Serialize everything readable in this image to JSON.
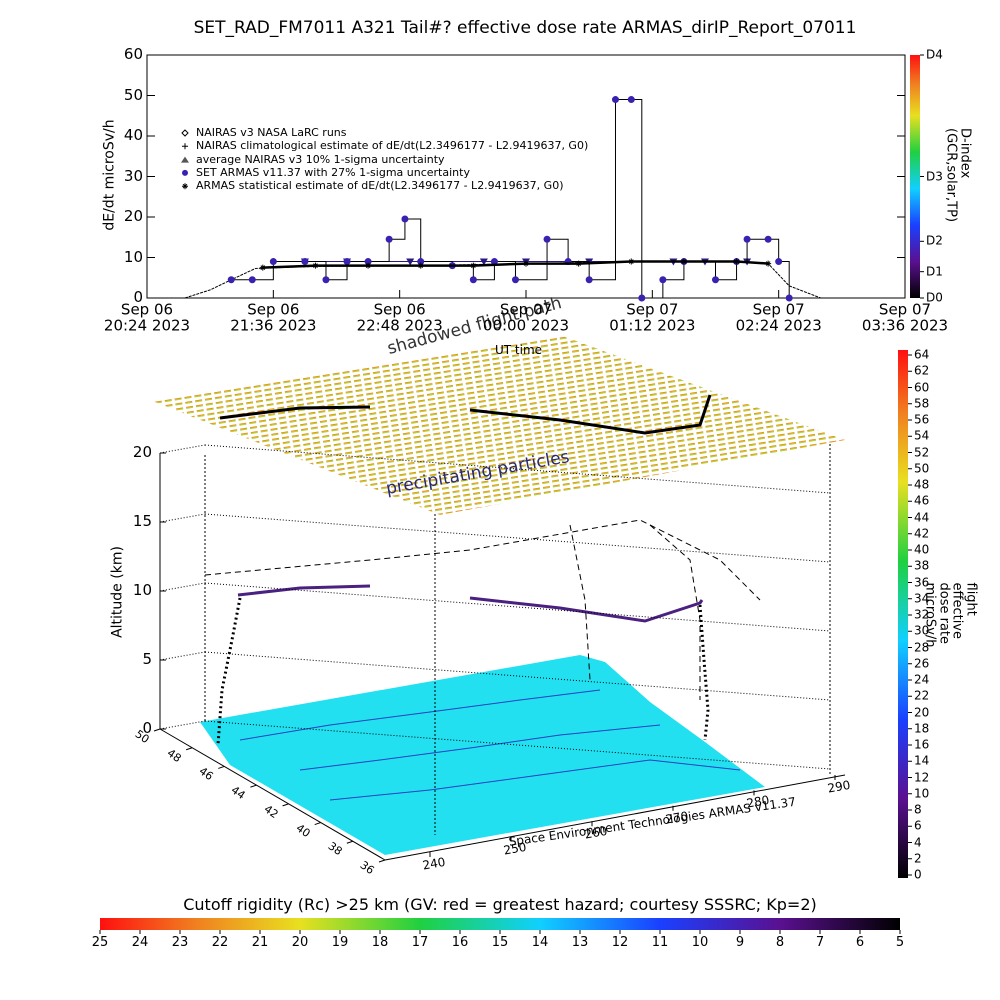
{
  "chart_data": [
    {
      "type": "line",
      "title": "SET_RAD_FM7011  A321 Tail#? effective dose rate ARMAS_dirIP_Report_07011",
      "ylabel": "dE/dt microSv/h",
      "xlabel": "UT time",
      "xlim": [
        20.4,
        27.6
      ],
      "xticks": [
        {
          "value": 20.4,
          "label": "Sep 06\n20:24 2023"
        },
        {
          "value": 21.6,
          "label": "Sep 06\n21:36 2023"
        },
        {
          "value": 22.8,
          "label": "Sep 06\n22:48 2023"
        },
        {
          "value": 24.0,
          "label": "Sep 07\n00:00 2023"
        },
        {
          "value": 25.2,
          "label": "Sep 07\n01:12 2023"
        },
        {
          "value": 26.4,
          "label": "Sep 07\n02:24 2023"
        },
        {
          "value": 27.6,
          "label": "Sep 07\n03:36 2023"
        }
      ],
      "ylim": [
        0,
        60
      ],
      "yticks": [
        0,
        10,
        20,
        30,
        40,
        50,
        60
      ],
      "series": [
        {
          "name": "NAIRAS v3 NASA LaRC runs",
          "color": "#000000",
          "marker": "diamond",
          "x": [],
          "values": []
        },
        {
          "name": "NAIRAS climatological estimate of dE/dt(L2.3496177 - L2.9419637, G0)",
          "color": "#000000",
          "marker": "line",
          "x": [
            20.76,
            21.0,
            21.2,
            21.43,
            22.0,
            23.0,
            24.0,
            25.0,
            26.0,
            26.3,
            26.5,
            26.8
          ],
          "values": [
            0,
            2,
            4.5,
            7.3,
            7.8,
            8,
            8.5,
            9,
            9,
            8.5,
            3,
            0
          ]
        },
        {
          "name": "average NAIRAS v3 10% 1-sigma uncertainty",
          "color": "#2a1a80",
          "marker": "triangle",
          "x": [
            21.9,
            22.3,
            22.9,
            23.6,
            24.0,
            24.6,
            25.4,
            25.7,
            26.1
          ],
          "values": [
            9,
            9,
            9,
            9,
            9,
            9,
            9,
            9,
            9
          ]
        },
        {
          "name": "SET ARMAS v11.37 with 27% 1-sigma uncertainty",
          "color": "#3a22b0",
          "marker": "dot",
          "x": [
            21.2,
            21.4,
            21.6,
            21.9,
            22.1,
            22.3,
            22.5,
            22.7,
            22.85,
            23.0,
            23.3,
            23.5,
            23.7,
            23.9,
            24.2,
            24.4,
            24.6,
            24.85,
            25.0,
            25.1,
            25.3,
            25.5,
            25.8,
            26.0,
            26.1,
            26.3,
            26.4,
            26.5
          ],
          "values": [
            4.5,
            4.5,
            9,
            9,
            4.5,
            9,
            9,
            14.5,
            19.5,
            9,
            8,
            4.5,
            9,
            4.5,
            14.5,
            9,
            4.5,
            49,
            49,
            0,
            4.5,
            9,
            4.5,
            9,
            14.5,
            14.5,
            9,
            0
          ]
        },
        {
          "name": "ARMAS statistical estimate of dE/dt(L2.3496177 - L2.9419637, G0)",
          "color": "#000000",
          "marker": "star",
          "x": [
            21.5,
            22.0,
            22.5,
            23.0,
            23.5,
            24.0,
            24.5,
            25.0,
            25.5,
            26.0,
            26.3
          ],
          "values": [
            7.5,
            8,
            8,
            8,
            8,
            8.5,
            8.5,
            9,
            9,
            9,
            8.5
          ]
        }
      ],
      "colorbar": {
        "label": "D-index (GCR,solar,TP)",
        "lim": [
          0,
          60
        ],
        "ticks": [
          {
            "value": 0,
            "label": "D0"
          },
          {
            "value": 6.5,
            "label": "D1"
          },
          {
            "value": 14,
            "label": "D2"
          },
          {
            "value": 30,
            "label": "D3"
          },
          {
            "value": 60,
            "label": "D4"
          }
        ]
      }
    },
    {
      "type": "3d",
      "zlabel": "Altitude (km)",
      "zlim": [
        0,
        20
      ],
      "zticks": [
        0,
        5,
        10,
        15,
        20
      ],
      "lat_ticks": [
        50,
        48,
        46,
        44,
        42,
        40,
        38,
        36
      ],
      "lon_ticks": [
        240,
        250,
        260,
        270,
        280,
        290
      ],
      "annotations": [
        "shadowed flight path",
        "precipitating particles"
      ],
      "credit": "Space Environment Technologies ARMAS v11.37",
      "dose_colorbar": {
        "label": "flight effective dose rate microSv/h",
        "lim": [
          0,
          64
        ],
        "ticks": [
          0,
          2,
          4,
          6,
          8,
          10,
          12,
          14,
          16,
          18,
          20,
          22,
          24,
          26,
          28,
          30,
          32,
          34,
          36,
          38,
          40,
          42,
          44,
          46,
          48,
          50,
          52,
          54,
          56,
          58,
          60,
          62,
          64
        ]
      },
      "rigidity_colorbar": {
        "label": "Cutoff rigidity (Rc) >25 km (GV: red = greatest hazard; courtesy SSSRC; Kp=2)",
        "lim": [
          25,
          5
        ],
        "ticks": [
          25,
          24,
          23,
          22,
          21,
          20,
          19,
          18,
          17,
          16,
          15,
          14,
          13,
          12,
          11,
          10,
          9,
          8,
          7,
          6,
          5
        ]
      }
    }
  ]
}
